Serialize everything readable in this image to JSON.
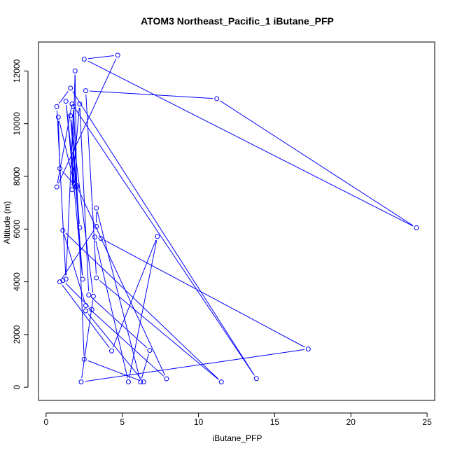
{
  "chart_data": {
    "type": "line",
    "title": "ATOM3 Northeast_Pacific_1 iButane_PFP",
    "xlabel": "iButane_PFP",
    "ylabel": "Altitude (m)",
    "xlim": [
      -0.5,
      25.5
    ],
    "ylim": [
      -500,
      13100
    ],
    "xticks": [
      0,
      5,
      10,
      15,
      20,
      25
    ],
    "yticks": [
      0,
      2000,
      4000,
      6000,
      8000,
      10000,
      12000
    ],
    "series_color": "#0000ff",
    "marker": "open-circle",
    "grid": false,
    "legend": "none",
    "series": [
      {
        "x": [
          2.2,
          1.6,
          2.4,
          1.3,
          1.9,
          0.8,
          0.9,
          2.0,
          1.9,
          1.7,
          2.2,
          2.8,
          6.8,
          6.2,
          3.3,
          3.3,
          0.9,
          4.3,
          7.3,
          5.4,
          3.2,
          3.6,
          17.2,
          2.3,
          3.1,
          1.6,
          2.0,
          7.9,
          2.6,
          1.1,
          11.5,
          3.3,
          2.6,
          11.2,
          24.3,
          2.5,
          4.7,
          0.7,
          1.7,
          13.8,
          1.6,
          0.7,
          1.3,
          1.8,
          2.5,
          6.4,
          2.6,
          3.0,
          1.1
        ],
        "y": [
          6050,
          10300,
          4100,
          10850,
          7600,
          10250,
          8300,
          7600,
          12000,
          7500,
          10750,
          3500,
          1400,
          200,
          6800,
          6100,
          4000,
          1380,
          5720,
          200,
          5700,
          5650,
          1450,
          200,
          3450,
          10300,
          7650,
          320,
          3100,
          5950,
          200,
          4150,
          11250,
          10950,
          6050,
          12450,
          12600,
          7600,
          10750,
          330,
          11350,
          10650,
          4100,
          10650,
          1060,
          200,
          2900,
          2950,
          4050
        ]
      }
    ]
  }
}
